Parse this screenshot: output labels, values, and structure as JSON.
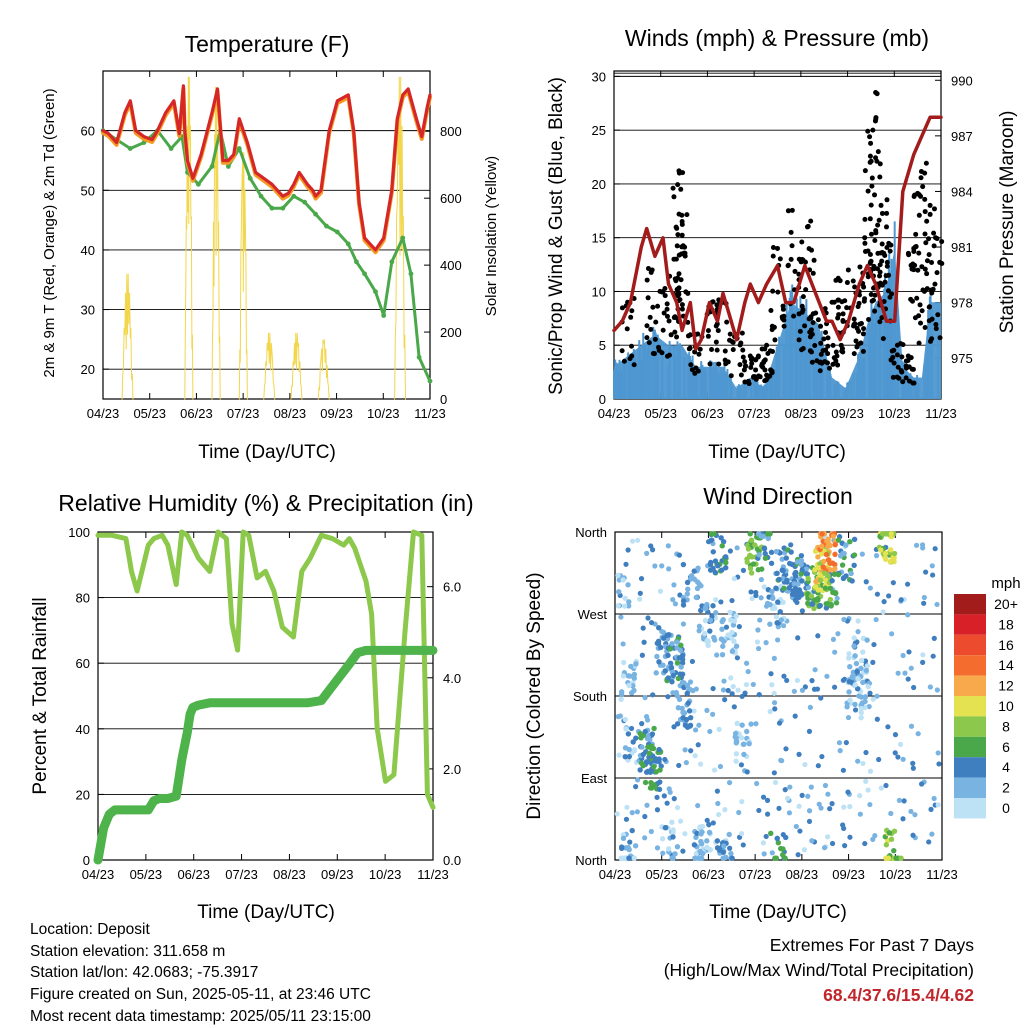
{
  "chart_data": [
    {
      "type": "line",
      "title": "Temperature (F)",
      "xlabel": "Time (Day/UTC)",
      "ylabel": "2m & 9m T (Red, Orange) & 2m Td (Green)",
      "ylabel_right": "Solar Insolation (Yellow)",
      "x_ticks": [
        "04/23",
        "05/23",
        "06/23",
        "07/23",
        "08/23",
        "09/23",
        "10/23",
        "11/23"
      ],
      "y_ticks": [
        20,
        30,
        40,
        50,
        60
      ],
      "y_right_ticks": [
        0,
        200,
        400,
        600,
        800
      ],
      "ylim": [
        15,
        70
      ],
      "ylim_right": [
        0,
        980
      ],
      "colors": {
        "t2m": "#d62728",
        "t9m": "#f59a23",
        "td": "#4aa84a",
        "solar": "#f2d64b"
      },
      "series": [
        {
          "key": "t2m",
          "x": [
            0,
            0.2,
            0.5,
            0.8,
            1.0,
            1.2,
            1.5,
            1.8,
            2.0,
            2.3,
            2.6,
            2.8,
            2.95,
            3.0,
            3.1,
            3.3,
            3.6,
            4.0,
            4.2,
            4.4,
            4.6,
            4.8,
            5.0,
            5.3,
            5.6,
            5.9,
            6.2,
            6.4,
            6.6,
            6.8,
            7.0,
            7.2,
            7.5,
            7.7,
            7.8,
            8.0,
            8.3,
            8.6,
            9.0,
            9.2,
            9.4,
            9.6,
            10.0,
            10.3,
            10.6,
            10.8,
            11.0,
            11.2,
            11.5,
            11.7,
            11.9,
            12.0
          ],
          "y": [
            60,
            59.5,
            58,
            63,
            65,
            60,
            59,
            58.5,
            60,
            63,
            65,
            59.5,
            67.5,
            60,
            55,
            52,
            56,
            63,
            67,
            55,
            55,
            56,
            62,
            58,
            53,
            52,
            51,
            50,
            49,
            49.5,
            51,
            53,
            51,
            50,
            49,
            50,
            60,
            65,
            66,
            60,
            48,
            42,
            40,
            42,
            50,
            62,
            66,
            67,
            62,
            59,
            64,
            66
          ]
        },
        {
          "key": "td",
          "x": [
            0,
            0.5,
            1.0,
            1.5,
            2.0,
            2.5,
            2.9,
            3.1,
            3.5,
            4.0,
            4.3,
            4.6,
            5.0,
            5.4,
            5.8,
            6.2,
            6.6,
            7.0,
            7.4,
            7.8,
            8.2,
            8.6,
            9.0,
            9.3,
            9.6,
            10.0,
            10.3,
            10.6,
            11.0,
            11.3,
            11.6,
            12.0
          ],
          "y": [
            60,
            58.5,
            57,
            58,
            60,
            57,
            59,
            53,
            51,
            54,
            60,
            54,
            57,
            52,
            49,
            47,
            47,
            49,
            48,
            46,
            44,
            43,
            41,
            38,
            36,
            33,
            29,
            38,
            42,
            36,
            22,
            18
          ]
        },
        {
          "key": "solar",
          "x": [
            0.7,
            0.9,
            1.1,
            3.0,
            3.1,
            3.3,
            4.0,
            4.1,
            4.3,
            5.0,
            5.1,
            5.3,
            5.9,
            6.1,
            6.3,
            6.9,
            7.1,
            7.3,
            7.9,
            8.0,
            8.3,
            10.7,
            10.9,
            11.1
          ],
          "y": [
            0,
            380,
            0,
            0,
            980,
            0,
            0,
            950,
            0,
            0,
            750,
            0,
            0,
            200,
            0,
            0,
            200,
            0,
            0,
            180,
            0,
            0,
            980,
            0
          ]
        }
      ]
    },
    {
      "type": "line",
      "title": "Winds (mph) & Pressure (mb)",
      "xlabel": "Time (Day/UTC)",
      "ylabel": "Sonic/Prop Wind & Gust (Blue, Black)",
      "ylabel_right": "Station Pressure (Maroon)",
      "x_ticks": [
        "04/23",
        "05/23",
        "06/23",
        "07/23",
        "08/23",
        "09/23",
        "10/23",
        "11/23"
      ],
      "y_ticks": [
        0,
        5,
        10,
        15,
        20,
        25,
        30
      ],
      "y_right_ticks": [
        975,
        978,
        981,
        984,
        987,
        990
      ],
      "ylim": [
        0,
        30.5
      ],
      "ylim_right": [
        972.8,
        990.5
      ],
      "colors": {
        "wind": "#4e97d1",
        "gust": "#000000",
        "pressure": "#a31c1c"
      },
      "series": [
        {
          "key": "pressure",
          "x": [
            0,
            0.3,
            0.6,
            1.0,
            1.2,
            1.5,
            1.8,
            2.0,
            2.3,
            2.5,
            2.8,
            3.0,
            3.2,
            3.5,
            3.8,
            4.0,
            4.2,
            4.5,
            4.8,
            5.0,
            5.3,
            5.6,
            6.0,
            6.3,
            6.6,
            7.0,
            7.4,
            7.8,
            8.0,
            8.3,
            8.6,
            9.0,
            9.3,
            9.6,
            10.0,
            10.3,
            10.6,
            11.0,
            11.3,
            11.6,
            12.0
          ],
          "y": [
            976.5,
            977,
            978,
            981,
            982,
            980.5,
            981.5,
            979,
            978,
            976.5,
            978,
            975.5,
            976,
            978,
            977,
            978.5,
            977.5,
            976,
            978,
            979,
            978,
            979,
            980,
            978,
            978,
            980,
            978.5,
            977,
            977,
            976,
            977,
            979,
            980,
            979,
            977,
            977,
            984,
            986,
            987,
            988,
            988
          ]
        },
        {
          "key": "wind_upper",
          "x": [
            0,
            0.5,
            1.0,
            1.5,
            2.0,
            2.5,
            3.0,
            3.5,
            4.0,
            4.5,
            5.0,
            5.5,
            6.0,
            6.5,
            7.0,
            7.5,
            8.0,
            8.5,
            9.0,
            9.3,
            9.6,
            10.0,
            10.3,
            10.6,
            11.0,
            11.3,
            11.6,
            12.0
          ],
          "y": [
            3,
            4,
            5,
            6,
            5,
            5,
            3,
            3,
            3,
            1,
            2,
            1,
            5,
            9,
            8,
            7,
            2,
            1,
            4,
            7,
            9,
            10,
            14,
            3,
            2,
            2,
            9,
            9
          ]
        },
        {
          "key": "gust_markers",
          "x": [
            0.5,
            1.4,
            1.8,
            2.2,
            2.4,
            2.45,
            2.5,
            3.0,
            3.6,
            4.0,
            4.5,
            5.0,
            5.3,
            5.6,
            6.0,
            6.4,
            6.8,
            7.1,
            7.4,
            7.8,
            8.0,
            8.3,
            8.6,
            9.0,
            9.2,
            9.4,
            9.5,
            9.6,
            9.7,
            9.8,
            10.0,
            10.4,
            10.8,
            11.0,
            11.2,
            11.4,
            11.6,
            11.8
          ],
          "y": [
            9,
            12,
            10,
            13,
            21,
            19.5,
            16.5,
            6,
            9,
            9,
            6,
            4,
            4,
            5,
            14,
            17.5,
            13,
            16,
            8,
            7,
            9,
            11,
            12,
            10,
            15,
            22,
            25,
            28.5,
            23,
            18,
            16,
            5,
            4,
            14,
            19,
            21,
            18,
            15
          ]
        }
      ]
    },
    {
      "type": "line",
      "title": "Relative Humidity (%) & Precipitation (in)",
      "xlabel": "Time (Day/UTC)",
      "ylabel": "Percent & Total Rainfall",
      "x_ticks": [
        "04/23",
        "05/23",
        "06/23",
        "07/23",
        "08/23",
        "09/23",
        "10/23",
        "11/23"
      ],
      "y_ticks": [
        0,
        20,
        40,
        60,
        80,
        100
      ],
      "y_right_ticks": [
        0.0,
        2.0,
        4.0,
        6.0
      ],
      "y_right_tick_labels": [
        "0.0",
        "2.0",
        "4.0",
        "6.0"
      ],
      "ylim": [
        0,
        100
      ],
      "ylim_right": [
        0,
        7.2
      ],
      "colors": {
        "rh": "#8cc84b",
        "precip": "#4db34a"
      },
      "series": [
        {
          "key": "rh",
          "x": [
            0,
            0.5,
            1.0,
            1.2,
            1.4,
            1.6,
            1.8,
            2.0,
            2.3,
            2.5,
            2.8,
            3.0,
            3.2,
            3.6,
            4.0,
            4.3,
            4.6,
            4.8,
            5.0,
            5.2,
            5.4,
            5.7,
            6.0,
            6.3,
            6.6,
            7.0,
            7.3,
            7.6,
            8.0,
            8.4,
            8.8,
            9.0,
            9.2,
            9.4,
            9.6,
            9.8,
            10.0,
            10.3,
            10.6,
            11.0,
            11.3,
            11.6,
            11.8,
            12.0
          ],
          "y": [
            99,
            99,
            98,
            88,
            82,
            89,
            96,
            98,
            99,
            96,
            84,
            100,
            99,
            92,
            88,
            100,
            98,
            72,
            64,
            100,
            99,
            86,
            88,
            82,
            71,
            68,
            88,
            92,
            99,
            98,
            96,
            98,
            95,
            90,
            85,
            75,
            40,
            24,
            26,
            70,
            100,
            99,
            20,
            16
          ]
        },
        {
          "key": "precip",
          "x": [
            0,
            0.2,
            0.4,
            0.6,
            1.0,
            1.5,
            1.8,
            2.0,
            2.2,
            2.5,
            2.8,
            3.0,
            3.2,
            3.3,
            3.4,
            3.6,
            4.0,
            5.0,
            6.0,
            6.5,
            7.0,
            7.5,
            8.0,
            8.5,
            9.0,
            9.3,
            9.6,
            10.0,
            11.0,
            12.0
          ],
          "y": [
            0,
            0.7,
            1.0,
            1.1,
            1.1,
            1.1,
            1.1,
            1.3,
            1.35,
            1.35,
            1.4,
            2.2,
            2.8,
            3.2,
            3.35,
            3.4,
            3.45,
            3.45,
            3.45,
            3.45,
            3.45,
            3.45,
            3.5,
            3.9,
            4.3,
            4.55,
            4.6,
            4.6,
            4.6,
            4.6
          ]
        }
      ]
    },
    {
      "type": "scatter",
      "title": "Wind Direction",
      "xlabel": "Time (Day/UTC)",
      "ylabel": "Direction (Colored By Speed)",
      "x_ticks": [
        "04/23",
        "05/23",
        "06/23",
        "07/23",
        "08/23",
        "09/23",
        "10/23",
        "11/23"
      ],
      "y_tick_labels": [
        "North",
        "East",
        "South",
        "West",
        "North"
      ],
      "y_ticks_deg": [
        0,
        90,
        180,
        270,
        360
      ],
      "ylim": [
        0,
        360
      ],
      "legend_title": "mph",
      "legend_labels": [
        "20+",
        "18",
        "16",
        "14",
        "12",
        "10",
        "8",
        "6",
        "4",
        "2",
        "0"
      ],
      "legend_colors": [
        "#a31c1c",
        "#d72027",
        "#ec4b2d",
        "#f46d2e",
        "#f8a94b",
        "#e4e251",
        "#8cc84b",
        "#4aa84a",
        "#3f7fc0",
        "#78b3e2",
        "#bde2f5"
      ],
      "clusters": [
        {
          "x": 0.3,
          "y": 300,
          "speed": 1,
          "n": 6
        },
        {
          "x": 0.5,
          "y": 200,
          "speed": 1,
          "n": 10
        },
        {
          "x": 0.6,
          "y": 130,
          "speed": 2,
          "n": 8
        },
        {
          "x": 1.2,
          "y": 120,
          "speed": 4,
          "n": 18
        },
        {
          "x": 1.4,
          "y": 100,
          "speed": 5,
          "n": 14
        },
        {
          "x": 1.8,
          "y": 230,
          "speed": 3,
          "n": 14
        },
        {
          "x": 2.2,
          "y": 220,
          "speed": 4,
          "n": 18
        },
        {
          "x": 2.5,
          "y": 170,
          "speed": 3,
          "n": 16
        },
        {
          "x": 2.8,
          "y": 300,
          "speed": 3,
          "n": 10
        },
        {
          "x": 3.4,
          "y": 260,
          "speed": 2,
          "n": 12
        },
        {
          "x": 3.8,
          "y": 340,
          "speed": 5,
          "n": 14
        },
        {
          "x": 4.2,
          "y": 250,
          "speed": 1,
          "n": 14
        },
        {
          "x": 4.7,
          "y": 130,
          "speed": 1,
          "n": 10
        },
        {
          "x": 5.1,
          "y": 340,
          "speed": 7,
          "n": 14
        },
        {
          "x": 5.5,
          "y": 350,
          "speed": 4,
          "n": 10
        },
        {
          "x": 5.9,
          "y": 280,
          "speed": 2,
          "n": 12
        },
        {
          "x": 6.2,
          "y": 320,
          "speed": 4,
          "n": 14
        },
        {
          "x": 6.8,
          "y": 310,
          "speed": 4,
          "n": 18
        },
        {
          "x": 7.3,
          "y": 300,
          "speed": 6,
          "n": 16
        },
        {
          "x": 7.6,
          "y": 320,
          "speed": 10,
          "n": 22
        },
        {
          "x": 7.8,
          "y": 340,
          "speed": 13,
          "n": 16
        },
        {
          "x": 8.0,
          "y": 300,
          "speed": 6,
          "n": 10
        },
        {
          "x": 8.5,
          "y": 330,
          "speed": 4,
          "n": 12
        },
        {
          "x": 9.0,
          "y": 220,
          "speed": 2,
          "n": 12
        },
        {
          "x": 9.1,
          "y": 180,
          "speed": 1,
          "n": 8
        },
        {
          "x": 10.0,
          "y": 350,
          "speed": 8,
          "n": 18
        },
        {
          "x": 10.2,
          "y": 10,
          "speed": 8,
          "n": 12
        },
        {
          "x": 3.2,
          "y": 15,
          "speed": 2,
          "n": 14
        },
        {
          "x": 4.0,
          "y": 8,
          "speed": 3,
          "n": 10
        },
        {
          "x": 2.0,
          "y": 20,
          "speed": 2,
          "n": 8
        },
        {
          "x": 0.5,
          "y": 8,
          "speed": 2,
          "n": 10
        },
        {
          "x": 6.0,
          "y": 5,
          "speed": 5,
          "n": 6
        },
        {
          "x": 8.8,
          "y": 190,
          "speed": 2,
          "n": 10
        }
      ]
    }
  ],
  "station": {
    "location": "Location: Deposit",
    "elevation": "Station elevation: 311.658 m",
    "latlon": "Station lat/lon: 42.0683; -75.3917",
    "created": "Figure created on Sun, 2025-05-11, at 23:46 UTC",
    "recent": "Most recent data timestamp: 2025/05/11 23:15:00"
  },
  "extremes": {
    "title": "Extremes For Past 7 Days",
    "subtitle": "(High/Low/Max Wind/Total Precipitation)",
    "values": "68.4/37.6/15.4/4.62"
  }
}
